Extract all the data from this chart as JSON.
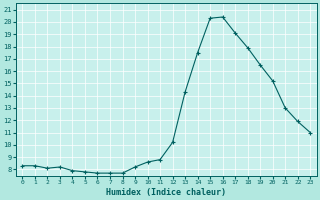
{
  "xlabel": "Humidex (Indice chaleur)",
  "background_color": "#b2e8e0",
  "plot_bg_color": "#c8f0ec",
  "grid_color": "#ffffff",
  "line_color": "#006060",
  "x_values": [
    0,
    1,
    2,
    3,
    4,
    5,
    6,
    7,
    8,
    9,
    10,
    11,
    12,
    13,
    14,
    15,
    16,
    17,
    18,
    19,
    20,
    21,
    22,
    23
  ],
  "y_values": [
    8.3,
    8.3,
    8.1,
    8.2,
    7.9,
    7.8,
    7.7,
    7.7,
    7.7,
    8.2,
    8.6,
    8.8,
    10.2,
    14.3,
    17.5,
    20.3,
    20.4,
    19.1,
    17.9,
    16.5,
    15.2,
    13.0,
    11.9,
    11.0
  ],
  "ylim": [
    7.5,
    21.5
  ],
  "xlim": [
    -0.5,
    23.5
  ],
  "yticks": [
    8,
    9,
    10,
    11,
    12,
    13,
    14,
    15,
    16,
    17,
    18,
    19,
    20,
    21
  ],
  "xticks": [
    0,
    1,
    2,
    3,
    4,
    5,
    6,
    7,
    8,
    9,
    10,
    11,
    12,
    13,
    14,
    15,
    16,
    17,
    18,
    19,
    20,
    21,
    22,
    23
  ]
}
